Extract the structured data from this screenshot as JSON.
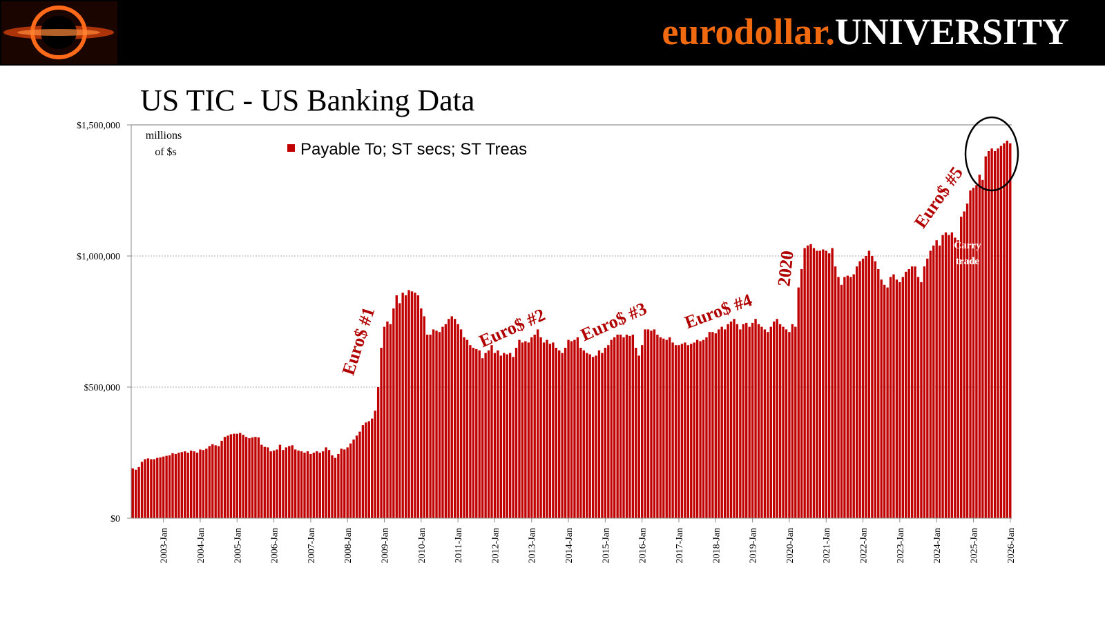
{
  "header": {
    "brand_left": "eurodollar.",
    "brand_right": "UNIVERSITY"
  },
  "chart_data": {
    "type": "bar",
    "title": "US TIC - US Banking Data",
    "unit_note": [
      "millions",
      "of $s"
    ],
    "annotations": [
      "Euro$ #1",
      "Euro$ #2",
      "Euro$ #3",
      "Euro$ #4",
      "2020",
      "Euro$ #5",
      "Carry",
      "trade"
    ],
    "legend_position": "top",
    "color": "#c00000",
    "grid": true,
    "ylim": [
      0,
      1500000
    ],
    "yticks": [
      {
        "value": 0,
        "label": "$0"
      },
      {
        "value": 500000,
        "label": "$500,000"
      },
      {
        "value": 1000000,
        "label": "$1,000,000"
      },
      {
        "value": 1500000,
        "label": "$1,500,000"
      }
    ],
    "categories": [
      null,
      null,
      null,
      null,
      null,
      null,
      null,
      null,
      null,
      null,
      "2003-Jan",
      null,
      null,
      null,
      null,
      null,
      null,
      null,
      null,
      null,
      null,
      null,
      "2004-Jan",
      null,
      null,
      null,
      null,
      null,
      null,
      null,
      null,
      null,
      null,
      null,
      "2005-Jan",
      null,
      null,
      null,
      null,
      null,
      null,
      null,
      null,
      null,
      null,
      null,
      "2006-Jan",
      null,
      null,
      null,
      null,
      null,
      null,
      null,
      null,
      null,
      null,
      null,
      "2007-Jan",
      null,
      null,
      null,
      null,
      null,
      null,
      null,
      null,
      null,
      null,
      null,
      "2008-Jan",
      null,
      null,
      null,
      null,
      null,
      null,
      null,
      null,
      null,
      null,
      null,
      "2009-Jan",
      null,
      null,
      null,
      null,
      null,
      null,
      null,
      null,
      null,
      null,
      null,
      "2010-Jan",
      null,
      null,
      null,
      null,
      null,
      null,
      null,
      null,
      null,
      null,
      null,
      "2011-Jan",
      null,
      null,
      null,
      null,
      null,
      null,
      null,
      null,
      null,
      null,
      null,
      "2012-Jan",
      null,
      null,
      null,
      null,
      null,
      null,
      null,
      null,
      null,
      null,
      null,
      "2013-Jan",
      null,
      null,
      null,
      null,
      null,
      null,
      null,
      null,
      null,
      null,
      null,
      "2014-Jan",
      null,
      null,
      null,
      null,
      null,
      null,
      null,
      null,
      null,
      null,
      null,
      "2015-Jan",
      null,
      null,
      null,
      null,
      null,
      null,
      null,
      null,
      null,
      null,
      null,
      "2016-Jan",
      null,
      null,
      null,
      null,
      null,
      null,
      null,
      null,
      null,
      null,
      null,
      "2017-Jan",
      null,
      null,
      null,
      null,
      null,
      null,
      null,
      null,
      null,
      null,
      null,
      "2018-Jan",
      null,
      null,
      null,
      null,
      null,
      null,
      null,
      null,
      null,
      null,
      null,
      "2019-Jan",
      null,
      null,
      null,
      null,
      null,
      null,
      null,
      null,
      null,
      null,
      null,
      "2020-Jan",
      null,
      null,
      null,
      null,
      null,
      null,
      null,
      null,
      null,
      null,
      null,
      "2021-Jan",
      null,
      null,
      null,
      null,
      null,
      null,
      null,
      null,
      null,
      null,
      null,
      "2022-Jan",
      null,
      null,
      null,
      null,
      null,
      null,
      null,
      null,
      null,
      null,
      null,
      "2023-Jan",
      null,
      null,
      null,
      null,
      null,
      null,
      null,
      null,
      null,
      null,
      null,
      "2024-Jan",
      null,
      null,
      null,
      null,
      null,
      null,
      null,
      null,
      null,
      null,
      null,
      "2025-Jan",
      null,
      null,
      null,
      null,
      null,
      null,
      null,
      null,
      null,
      null,
      null,
      "2026-Jan"
    ],
    "series": [
      {
        "name": "Payable To; ST secs; ST Treas",
        "color": "#c00000",
        "values": [
          190000,
          185000,
          195000,
          215000,
          225000,
          228000,
          225000,
          225000,
          230000,
          232000,
          235000,
          238000,
          240000,
          248000,
          245000,
          250000,
          252000,
          255000,
          250000,
          258000,
          255000,
          250000,
          262000,
          260000,
          265000,
          275000,
          282000,
          278000,
          275000,
          295000,
          310000,
          315000,
          320000,
          322000,
          322000,
          325000,
          318000,
          310000,
          305000,
          308000,
          310000,
          308000,
          280000,
          272000,
          270000,
          255000,
          258000,
          262000,
          280000,
          260000,
          270000,
          275000,
          278000,
          262000,
          258000,
          255000,
          250000,
          255000,
          245000,
          250000,
          255000,
          250000,
          255000,
          270000,
          260000,
          240000,
          230000,
          245000,
          265000,
          262000,
          270000,
          285000,
          300000,
          315000,
          330000,
          355000,
          365000,
          370000,
          380000,
          410000,
          500000,
          650000,
          730000,
          750000,
          740000,
          800000,
          850000,
          820000,
          860000,
          850000,
          870000,
          865000,
          860000,
          850000,
          800000,
          770000,
          700000,
          700000,
          720000,
          715000,
          710000,
          730000,
          740000,
          760000,
          770000,
          760000,
          740000,
          720000,
          690000,
          680000,
          660000,
          650000,
          645000,
          640000,
          610000,
          630000,
          640000,
          660000,
          630000,
          640000,
          620000,
          630000,
          625000,
          630000,
          615000,
          650000,
          680000,
          670000,
          675000,
          670000,
          690000,
          700000,
          720000,
          690000,
          670000,
          680000,
          665000,
          670000,
          650000,
          640000,
          630000,
          650000,
          680000,
          675000,
          680000,
          690000,
          650000,
          640000,
          630000,
          625000,
          615000,
          620000,
          640000,
          630000,
          650000,
          660000,
          680000,
          690000,
          700000,
          700000,
          690000,
          700000,
          695000,
          700000,
          650000,
          620000,
          660000,
          720000,
          720000,
          715000,
          720000,
          700000,
          690000,
          685000,
          680000,
          690000,
          670000,
          660000,
          660000,
          665000,
          670000,
          660000,
          665000,
          670000,
          680000,
          675000,
          680000,
          690000,
          710000,
          710000,
          705000,
          720000,
          730000,
          720000,
          740000,
          750000,
          760000,
          740000,
          720000,
          740000,
          745000,
          730000,
          745000,
          760000,
          740000,
          730000,
          720000,
          710000,
          730000,
          750000,
          760000,
          740000,
          730000,
          720000,
          710000,
          740000,
          730000,
          880000,
          950000,
          1030000,
          1040000,
          1045000,
          1030000,
          1020000,
          1020000,
          1025000,
          1020000,
          1010000,
          1030000,
          960000,
          920000,
          890000,
          920000,
          925000,
          920000,
          930000,
          960000,
          980000,
          990000,
          1000000,
          1020000,
          1000000,
          980000,
          950000,
          910000,
          890000,
          880000,
          920000,
          930000,
          910000,
          900000,
          920000,
          940000,
          950000,
          960000,
          960000,
          920000,
          900000,
          960000,
          990000,
          1020000,
          1040000,
          1060000,
          1040000,
          1080000,
          1090000,
          1080000,
          1090000,
          1070000,
          1060000,
          1150000,
          1170000,
          1200000,
          1250000,
          1260000,
          1270000,
          1310000,
          1290000,
          1380000,
          1400000,
          1410000,
          1400000,
          1410000,
          1420000,
          1430000,
          1440000,
          1430000
        ]
      }
    ]
  }
}
